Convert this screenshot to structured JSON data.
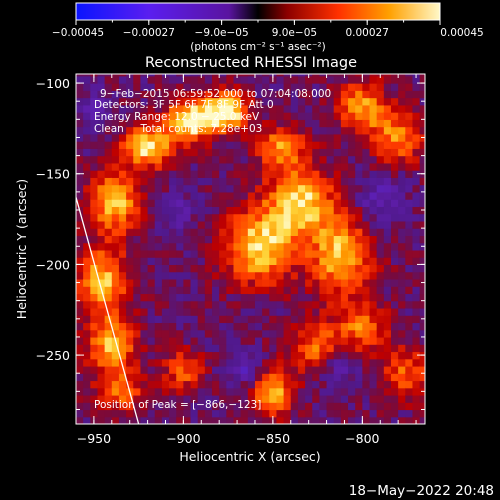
{
  "chart_data": {
    "type": "heatmap",
    "title": "Reconstructed RHESSI Image",
    "xlabel": "Heliocentric X (arcsec)",
    "ylabel": "Heliocentric Y (arcsec)",
    "xlim": [
      -960,
      -765
    ],
    "ylim": [
      -288,
      -95
    ],
    "x_ticks": [
      -950,
      -900,
      -850,
      -800
    ],
    "x_tick_labels": [
      "−950",
      "−900",
      "−850",
      "−800"
    ],
    "y_ticks": [
      -100,
      -150,
      -200,
      -250
    ],
    "y_tick_labels": [
      "−100",
      "−150",
      "−200",
      "−250"
    ],
    "colorbar": {
      "min": -0.00045,
      "max": 0.00045,
      "ticks": [
        -0.00045,
        -0.00027,
        -9e-05,
        9e-05,
        0.00027,
        0.00045
      ],
      "tick_labels": [
        "−0.00045",
        "−0.00027",
        "−9.0e−05",
        "9.0e−05",
        "0.00027",
        "0.00045"
      ],
      "units_label": "(photons cm⁻² s⁻¹ asec⁻²)"
    },
    "annotations": [
      "9−Feb−2015 06:59:52.000 to 07:04:08.000",
      "Detectors: 3F 5F 6F 7F 8F 9F Att 0",
      "Energy Range: 12.0 − 25.0 keV",
      "Clean     Total counts: 7.28e+03"
    ],
    "peak_label": "Position of Peak = [−866,−123]",
    "peak_position": [
      -866,
      -123
    ],
    "limb_line": [
      [
        -960,
        -163
      ],
      [
        -925,
        -288
      ]
    ],
    "emission_sources": [
      {
        "x": -895,
        "y": -120,
        "sx": 10,
        "sy": 8,
        "amp": 1.0
      },
      {
        "x": -875,
        "y": -115,
        "sx": 8,
        "sy": 7,
        "amp": 0.95
      },
      {
        "x": -920,
        "y": -135,
        "sx": 10,
        "sy": 8,
        "amp": 0.85
      },
      {
        "x": -938,
        "y": -165,
        "sx": 10,
        "sy": 12,
        "amp": 0.75
      },
      {
        "x": -945,
        "y": -210,
        "sx": 10,
        "sy": 14,
        "amp": 0.75
      },
      {
        "x": -940,
        "y": -245,
        "sx": 10,
        "sy": 10,
        "amp": 0.7
      },
      {
        "x": -858,
        "y": -190,
        "sx": 14,
        "sy": 14,
        "amp": 0.85
      },
      {
        "x": -835,
        "y": -165,
        "sx": 13,
        "sy": 13,
        "amp": 0.8
      },
      {
        "x": -812,
        "y": -195,
        "sx": 12,
        "sy": 16,
        "amp": 0.75
      },
      {
        "x": -845,
        "y": -135,
        "sx": 10,
        "sy": 8,
        "amp": 0.6
      },
      {
        "x": -800,
        "y": -113,
        "sx": 10,
        "sy": 10,
        "amp": 0.65
      },
      {
        "x": -780,
        "y": -130,
        "sx": 10,
        "sy": 10,
        "amp": 0.6
      },
      {
        "x": -850,
        "y": -270,
        "sx": 8,
        "sy": 10,
        "amp": 0.75
      },
      {
        "x": -825,
        "y": -245,
        "sx": 10,
        "sy": 10,
        "amp": 0.55
      },
      {
        "x": -800,
        "y": -235,
        "sx": 10,
        "sy": 10,
        "amp": 0.55
      },
      {
        "x": -775,
        "y": -260,
        "sx": 10,
        "sy": 10,
        "amp": 0.5
      },
      {
        "x": -900,
        "y": -258,
        "sx": 8,
        "sy": 8,
        "amp": 0.5
      },
      {
        "x": -935,
        "y": -270,
        "sx": 10,
        "sy": 8,
        "amp": 0.5
      }
    ],
    "negative_sources": [
      {
        "x": -865,
        "y": -258,
        "sx": 8,
        "sy": 6,
        "amp": 0.35
      },
      {
        "x": -812,
        "y": -255,
        "sx": 8,
        "sy": 8,
        "amp": 0.35
      },
      {
        "x": -790,
        "y": -165,
        "sx": 10,
        "sy": 10,
        "amp": 0.3
      },
      {
        "x": -905,
        "y": -172,
        "sx": 8,
        "sy": 8,
        "amp": 0.25
      },
      {
        "x": -950,
        "y": -115,
        "sx": 6,
        "sy": 8,
        "amp": 0.3
      }
    ],
    "colors": {
      "background": "#000000",
      "frame": "#ffffff",
      "limb": "#ffffff",
      "text": "#ffffff"
    }
  },
  "timestamp": "18−May−2022 20:48"
}
